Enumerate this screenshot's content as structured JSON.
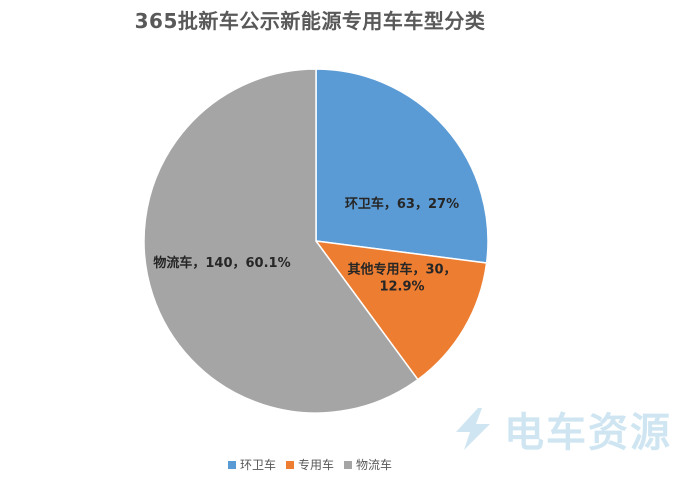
{
  "chart_data": {
    "type": "pie",
    "title": "365批新车公示新能源专用车车型分类",
    "categories": [
      "环卫车",
      "其他专用车",
      "物流车"
    ],
    "values": [
      63,
      30,
      140
    ],
    "percents": [
      "27%",
      "12.9%",
      "60.1%"
    ],
    "labels": [
      [
        "环卫车，63，27%"
      ],
      [
        "其他专用车，30，",
        "12.9%"
      ],
      [
        "物流车，140，60.1%"
      ]
    ],
    "colors": [
      "#5b9bd5",
      "#ed7d31",
      "#a5a5a5"
    ],
    "legend": {
      "placement": "bottom",
      "entries": [
        {
          "label": "环卫车",
          "color": "#5b9bd5"
        },
        {
          "label": "专用车",
          "color": "#ed7d31"
        },
        {
          "label": "物流车",
          "color": "#a5a5a5"
        }
      ]
    }
  },
  "watermark": {
    "text": "电车资源",
    "color": "#cfe6f2"
  }
}
